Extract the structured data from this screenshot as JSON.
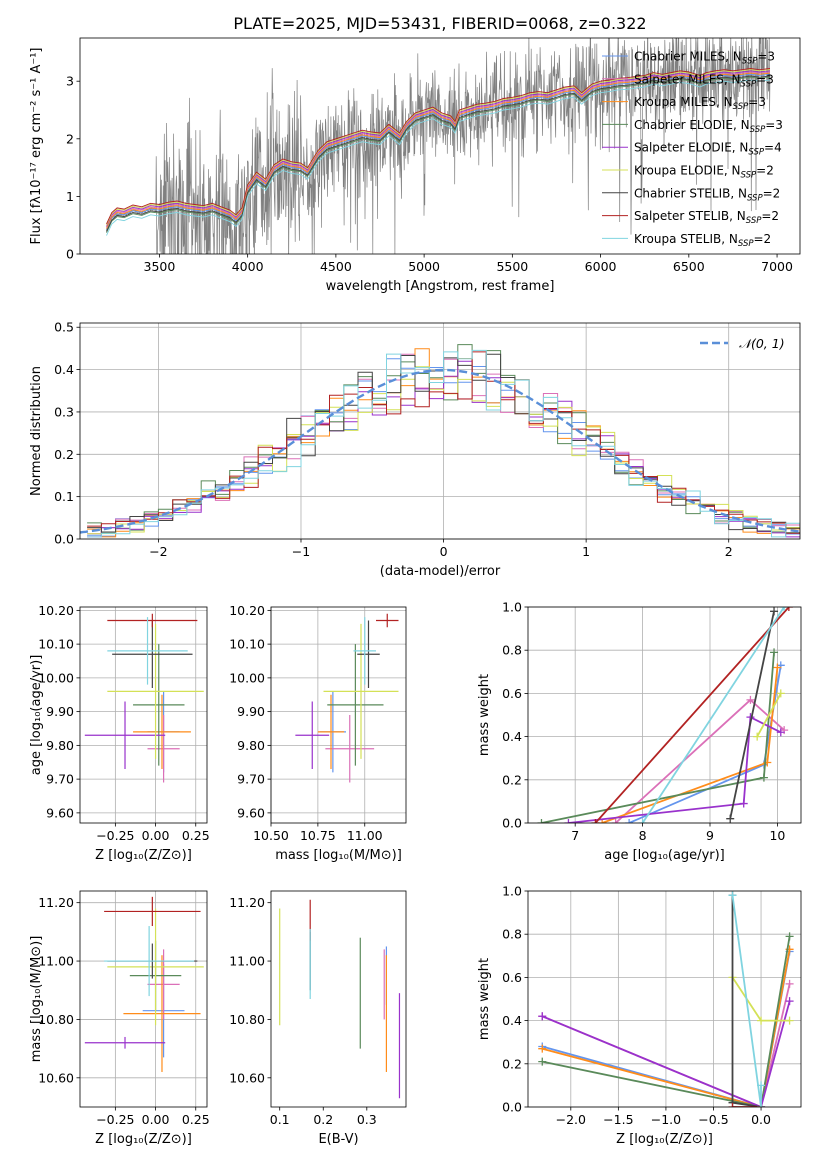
{
  "figure": {
    "title": "PLATE=2025, MJD=53431, FIBERID=0068, z=0.322"
  },
  "colors": {
    "Chabrier MILES": "#6495ed",
    "Salpeter MILES": "#db70b8",
    "Kroupa MILES": "#ff8c1a",
    "Chabrier ELODIE": "#5a8a5a",
    "Salpeter ELODIE": "#9932cc",
    "Kroupa ELODIE": "#d4e157",
    "Chabrier STELIB": "#444444",
    "Salpeter STELIB": "#b22222",
    "Kroupa STELIB": "#80d4e0",
    "data": "#808080",
    "gaussian": "#5a8fd8"
  },
  "chart_data": [
    {
      "id": "spectrum",
      "type": "line",
      "title": "PLATE=2025, MJD=53431, FIBERID=0068, z=0.322",
      "xlabel": "wavelength [Angstrom, rest frame]",
      "ylabel": "Flux [fλ10⁻¹⁷ erg cm⁻² s⁻¹ A⁻¹]",
      "xlim": [
        3050,
        7130
      ],
      "ylim": [
        0,
        3.75
      ],
      "xticks": [
        3500,
        4000,
        4500,
        5000,
        5500,
        6000,
        6500,
        7000
      ],
      "yticks": [
        0,
        1,
        2,
        3
      ],
      "grid": false,
      "legend_position": "top-right",
      "legend": [
        "Chabrier MILES, N_SSP=3",
        "Salpeter MILES, N_SSP=3",
        "Kroupa MILES, N_SSP=3",
        "Chabrier ELODIE, N_SSP=3",
        "Salpeter ELODIE, N_SSP=4",
        "Kroupa ELODIE, N_SSP=2",
        "Chabrier STELIB, N_SSP=2",
        "Salpeter STELIB, N_SSP=2",
        "Kroupa STELIB, N_SSP=2"
      ],
      "model_x": [
        3200,
        3230,
        3260,
        3300,
        3350,
        3400,
        3450,
        3500,
        3550,
        3600,
        3650,
        3700,
        3750,
        3800,
        3850,
        3900,
        3934,
        3968,
        4000,
        4050,
        4102,
        4150,
        4200,
        4250,
        4300,
        4340,
        4400,
        4450,
        4500,
        4550,
        4600,
        4650,
        4700,
        4750,
        4800,
        4861,
        4900,
        4950,
        5000,
        5050,
        5100,
        5150,
        5175,
        5200,
        5250,
        5300,
        5350,
        5400,
        5450,
        5500,
        5550,
        5600,
        5650,
        5700,
        5750,
        5800,
        5850,
        5893,
        5950,
        6000,
        6050,
        6100,
        6150,
        6200,
        6250,
        6300,
        6350,
        6400,
        6450,
        6500,
        6563,
        6600,
        6650,
        6700,
        6750,
        6800,
        6850,
        6900,
        6960
      ],
      "model_y": [
        0.42,
        0.62,
        0.7,
        0.68,
        0.75,
        0.72,
        0.78,
        0.76,
        0.8,
        0.82,
        0.78,
        0.76,
        0.74,
        0.78,
        0.72,
        0.66,
        0.58,
        0.7,
        1.1,
        1.32,
        1.2,
        1.45,
        1.55,
        1.5,
        1.48,
        1.4,
        1.7,
        1.85,
        1.9,
        1.95,
        2.0,
        2.05,
        2.02,
        2.0,
        2.15,
        2.0,
        2.2,
        2.35,
        2.4,
        2.45,
        2.35,
        2.3,
        2.2,
        2.4,
        2.45,
        2.5,
        2.52,
        2.55,
        2.6,
        2.62,
        2.65,
        2.7,
        2.72,
        2.7,
        2.75,
        2.8,
        2.82,
        2.7,
        2.85,
        2.9,
        2.92,
        2.95,
        2.96,
        2.98,
        3.0,
        3.05,
        3.02,
        3.05,
        3.08,
        3.06,
        3.0,
        3.05,
        3.08,
        3.1,
        3.08,
        3.1,
        3.12,
        3.1,
        3.12
      ],
      "model_offsets": [
        0.0,
        0.04,
        0.02,
        -0.05,
        0.06,
        0.08,
        -0.03,
        0.1,
        -0.1
      ],
      "data_range": [
        3200,
        6960
      ],
      "data_noise_sigma": 0.45,
      "data_noise_start": 3480
    },
    {
      "id": "residuals",
      "type": "step",
      "xlabel": "(data-model)/error",
      "ylabel": "Normed distribution",
      "xlim": [
        -2.55,
        2.5
      ],
      "ylim": [
        0,
        0.51
      ],
      "xticks": [
        -2,
        -1,
        0,
        1,
        2
      ],
      "yticks": [
        0,
        0.1,
        0.2,
        0.3,
        0.4,
        0.5
      ],
      "grid": true,
      "legend_position": "top-right",
      "legend": [
        "𝒩(0, 1)"
      ],
      "bin_width": 0.1,
      "bins_start": -2.5,
      "gaussian": {
        "mean": 0,
        "sigma": 1
      },
      "jitter_seeds": [
        11,
        23,
        37,
        41,
        53,
        67,
        71,
        83,
        97
      ]
    },
    {
      "id": "age-vs-Z",
      "type": "errorbar",
      "xlabel": "Z [log₁₀(Z/Z⊙)]",
      "ylabel": "age  [log₁₀(age/yr)]",
      "xlim": [
        -0.47,
        0.32
      ],
      "ylim": [
        9.57,
        10.21
      ],
      "xticks": [
        -0.25,
        0.0,
        0.25
      ],
      "xtick_labels": [
        "−0.25",
        "0.00",
        "0.25"
      ],
      "yticks": [
        9.6,
        9.7,
        9.8,
        9.9,
        10.0,
        10.1,
        10.2
      ],
      "grid": true,
      "points": [
        {
          "model": "Chabrier MILES",
          "x": 0.05,
          "xerr": 0.1,
          "y": 9.84,
          "yerr": 0.12
        },
        {
          "model": "Salpeter MILES",
          "x": 0.05,
          "xerr": 0.1,
          "y": 9.79,
          "yerr": 0.1
        },
        {
          "model": "Kroupa MILES",
          "x": 0.04,
          "xerr": 0.18,
          "y": 9.84,
          "yerr": 0.11
        },
        {
          "model": "Chabrier ELODIE",
          "x": 0.02,
          "xerr": 0.16,
          "y": 9.92,
          "yerr": 0.18
        },
        {
          "model": "Salpeter ELODIE",
          "x": -0.19,
          "xerr": 0.25,
          "y": 9.83,
          "yerr": 0.1
        },
        {
          "model": "Kroupa ELODIE",
          "x": 0.0,
          "xerr": 0.3,
          "y": 9.96,
          "yerr": 0.2
        },
        {
          "model": "Chabrier STELIB",
          "x": -0.02,
          "xerr": 0.25,
          "y": 10.07,
          "yerr": 0.1
        },
        {
          "model": "Salpeter STELIB",
          "x": -0.02,
          "xerr": 0.28,
          "y": 10.17,
          "yerr": 0.02
        },
        {
          "model": "Kroupa STELIB",
          "x": -0.05,
          "xerr": 0.25,
          "y": 10.08,
          "yerr": 0.1
        }
      ]
    },
    {
      "id": "age-vs-mass",
      "type": "errorbar",
      "xlabel": "mass [log₁₀(M/M⊙)]",
      "ylabel": "",
      "xlim": [
        10.5,
        11.22
      ],
      "ylim": [
        9.57,
        10.21
      ],
      "xticks": [
        10.5,
        10.75,
        11.0
      ],
      "xtick_labels": [
        "10.50",
        "10.75",
        "11.00"
      ],
      "yticks": [
        9.6,
        9.7,
        9.8,
        9.9,
        10.0,
        10.1,
        10.2
      ],
      "grid": true,
      "points": [
        {
          "model": "Chabrier MILES",
          "x": 10.83,
          "xerr": 0.07,
          "y": 9.84,
          "yerr": 0.12
        },
        {
          "model": "Salpeter MILES",
          "x": 10.92,
          "xerr": 0.13,
          "y": 9.79,
          "yerr": 0.1
        },
        {
          "model": "Kroupa MILES",
          "x": 10.82,
          "xerr": 0.07,
          "y": 9.84,
          "yerr": 0.11
        },
        {
          "model": "Chabrier ELODIE",
          "x": 10.95,
          "xerr": 0.15,
          "y": 9.92,
          "yerr": 0.18
        },
        {
          "model": "Salpeter ELODIE",
          "x": 10.72,
          "xerr": 0.09,
          "y": 9.83,
          "yerr": 0.1
        },
        {
          "model": "Kroupa ELODIE",
          "x": 10.98,
          "xerr": 0.2,
          "y": 9.96,
          "yerr": 0.2
        },
        {
          "model": "Chabrier STELIB",
          "x": 11.02,
          "xerr": 0.06,
          "y": 10.07,
          "yerr": 0.1
        },
        {
          "model": "Salpeter STELIB",
          "x": 11.12,
          "xerr": 0.06,
          "y": 10.17,
          "yerr": 0.02
        },
        {
          "model": "Kroupa STELIB",
          "x": 11.0,
          "xerr": 0.06,
          "y": 10.08,
          "yerr": 0.1
        }
      ]
    },
    {
      "id": "massweight-vs-age",
      "type": "line",
      "xlabel": "age  [log₁₀(age/yr)]",
      "ylabel": "mass weight",
      "xlim": [
        6.3,
        10.35
      ],
      "ylim": [
        0,
        1.0
      ],
      "xticks": [
        7,
        8,
        9,
        10
      ],
      "yticks": [
        0.0,
        0.2,
        0.4,
        0.6,
        0.8,
        1.0
      ],
      "grid": true,
      "series": [
        {
          "model": "Chabrier MILES",
          "x": [
            7.8,
            9.8,
            10.05
          ],
          "y": [
            0.0,
            0.27,
            0.73
          ]
        },
        {
          "model": "Salpeter MILES",
          "x": [
            7.6,
            9.6,
            10.1
          ],
          "y": [
            0.0,
            0.57,
            0.43
          ]
        },
        {
          "model": "Kroupa MILES",
          "x": [
            7.4,
            9.85,
            10.0
          ],
          "y": [
            0.0,
            0.28,
            0.72
          ]
        },
        {
          "model": "Chabrier ELODIE",
          "x": [
            6.5,
            9.8,
            9.95
          ],
          "y": [
            0.0,
            0.21,
            0.79
          ]
        },
        {
          "model": "Salpeter ELODIE",
          "x": [
            6.9,
            9.5,
            9.6,
            10.05
          ],
          "y": [
            0.0,
            0.09,
            0.49,
            0.42
          ]
        },
        {
          "model": "Kroupa ELODIE",
          "x": [
            9.7,
            10.05
          ],
          "y": [
            0.4,
            0.6
          ]
        },
        {
          "model": "Chabrier STELIB",
          "x": [
            9.3,
            9.95
          ],
          "y": [
            0.02,
            0.98
          ]
        },
        {
          "model": "Salpeter STELIB",
          "x": [
            7.3,
            10.17
          ],
          "y": [
            0.0,
            1.0
          ]
        },
        {
          "model": "Kroupa STELIB",
          "x": [
            8.0,
            10.1
          ],
          "y": [
            0.0,
            1.0
          ]
        }
      ]
    },
    {
      "id": "mass-vs-Z",
      "type": "errorbar",
      "xlabel": "Z [log₁₀(Z/Z⊙)]",
      "ylabel": "mass [log₁₀(M/M⊙)]",
      "xlim": [
        -0.47,
        0.32
      ],
      "ylim": [
        10.5,
        11.24
      ],
      "xticks": [
        -0.25,
        0.0,
        0.25
      ],
      "xtick_labels": [
        "−0.25",
        "0.00",
        "0.25"
      ],
      "yticks": [
        10.6,
        10.8,
        11.0,
        11.2
      ],
      "grid": true,
      "points": [
        {
          "model": "Chabrier MILES",
          "x": 0.05,
          "xerr": 0.13,
          "y": 10.83,
          "yerr": 0.16
        },
        {
          "model": "Salpeter MILES",
          "x": 0.05,
          "xerr": 0.1,
          "y": 10.92,
          "yerr": 0.12
        },
        {
          "model": "Kroupa MILES",
          "x": 0.04,
          "xerr": 0.24,
          "y": 10.82,
          "yerr": 0.2
        },
        {
          "model": "Chabrier ELODIE",
          "x": 0.0,
          "xerr": 0.16,
          "y": 10.95,
          "yerr": 0.12
        },
        {
          "model": "Salpeter ELODIE",
          "x": -0.19,
          "xerr": 0.25,
          "y": 10.72,
          "yerr": 0.02
        },
        {
          "model": "Kroupa ELODIE",
          "x": 0.0,
          "xerr": 0.3,
          "y": 10.98,
          "yerr": 0.2
        },
        {
          "model": "Chabrier STELIB",
          "x": -0.02,
          "xerr": 0.28,
          "y": 11.0,
          "yerr": 0.06
        },
        {
          "model": "Salpeter STELIB",
          "x": -0.02,
          "xerr": 0.3,
          "y": 11.17,
          "yerr": 0.05
        },
        {
          "model": "Kroupa STELIB",
          "x": -0.04,
          "xerr": 0.28,
          "y": 11.0,
          "yerr": 0.12
        }
      ]
    },
    {
      "id": "mass-vs-ebv",
      "type": "errorbar",
      "xlabel": "E(B-V)",
      "ylabel": "",
      "xlim": [
        0.08,
        0.39
      ],
      "ylim": [
        10.5,
        11.24
      ],
      "xticks": [
        0.1,
        0.2,
        0.3
      ],
      "xtick_labels": [
        "0.1",
        "0.2",
        "0.3"
      ],
      "yticks": [
        10.6,
        10.8,
        11.0,
        11.2
      ],
      "grid": false,
      "points": [
        {
          "model": "Chabrier MILES",
          "x": 0.345,
          "xerr": 0.0,
          "y": 10.95,
          "yerr": 0.1
        },
        {
          "model": "Salpeter MILES",
          "x": 0.34,
          "xerr": 0.0,
          "y": 10.92,
          "yerr": 0.12
        },
        {
          "model": "Kroupa MILES",
          "x": 0.345,
          "xerr": 0.0,
          "y": 10.82,
          "yerr": 0.2
        },
        {
          "model": "Chabrier ELODIE",
          "x": 0.285,
          "xerr": 0.0,
          "y": 10.89,
          "yerr": 0.19
        },
        {
          "model": "Salpeter ELODIE",
          "x": 0.375,
          "xerr": 0.0,
          "y": 10.71,
          "yerr": 0.18
        },
        {
          "model": "Kroupa ELODIE",
          "x": 0.1,
          "xerr": 0.0,
          "y": 10.98,
          "yerr": 0.2
        },
        {
          "model": "Chabrier STELIB",
          "x": 0.17,
          "xerr": 0.0,
          "y": 11.0,
          "yerr": 0.1
        },
        {
          "model": "Salpeter STELIB",
          "x": 0.17,
          "xerr": 0.0,
          "y": 11.14,
          "yerr": 0.07
        },
        {
          "model": "Kroupa STELIB",
          "x": 0.17,
          "xerr": 0.0,
          "y": 10.99,
          "yerr": 0.12
        }
      ]
    },
    {
      "id": "massweight-vs-Z",
      "type": "line",
      "xlabel": "Z [log₁₀(Z/Z⊙)]",
      "ylabel": "mass weight",
      "xlim": [
        -2.45,
        0.42
      ],
      "ylim": [
        0,
        1.0
      ],
      "xticks": [
        -2.0,
        -1.5,
        -1.0,
        -0.5,
        0.0
      ],
      "xtick_labels": [
        "−2.0",
        "−1.5",
        "−1.0",
        "−0.5",
        "0.0"
      ],
      "yticks": [
        0.0,
        0.2,
        0.4,
        0.6,
        0.8,
        1.0
      ],
      "grid": true,
      "series": [
        {
          "model": "Chabrier MILES",
          "x": [
            -2.3,
            0.0,
            0.3
          ],
          "y": [
            0.28,
            0.0,
            0.72
          ]
        },
        {
          "model": "Salpeter MILES",
          "x": [
            -2.3,
            0.0,
            0.3
          ],
          "y": [
            0.42,
            0.0,
            0.57
          ]
        },
        {
          "model": "Kroupa MILES",
          "x": [
            -2.3,
            0.0,
            0.3
          ],
          "y": [
            0.27,
            0.0,
            0.73
          ]
        },
        {
          "model": "Chabrier ELODIE",
          "x": [
            -2.3,
            0.0,
            0.3
          ],
          "y": [
            0.21,
            0.0,
            0.79
          ]
        },
        {
          "model": "Salpeter ELODIE",
          "x": [
            -2.3,
            0.0,
            0.3
          ],
          "y": [
            0.42,
            0.0,
            0.49
          ]
        },
        {
          "model": "Kroupa ELODIE",
          "x": [
            -0.3,
            0.0,
            0.3
          ],
          "y": [
            0.6,
            0.4,
            0.4
          ]
        },
        {
          "model": "Chabrier STELIB",
          "x": [
            -0.3,
            -0.3,
            0.0
          ],
          "y": [
            0.98,
            0.02,
            0.0
          ]
        },
        {
          "model": "Salpeter STELIB",
          "x": [
            -0.3,
            0.0
          ],
          "y": [
            0.0,
            0.0
          ]
        },
        {
          "model": "Kroupa STELIB",
          "x": [
            -0.3,
            0.0,
            0.0
          ],
          "y": [
            0.98,
            0.0,
            0.1
          ]
        }
      ]
    }
  ]
}
